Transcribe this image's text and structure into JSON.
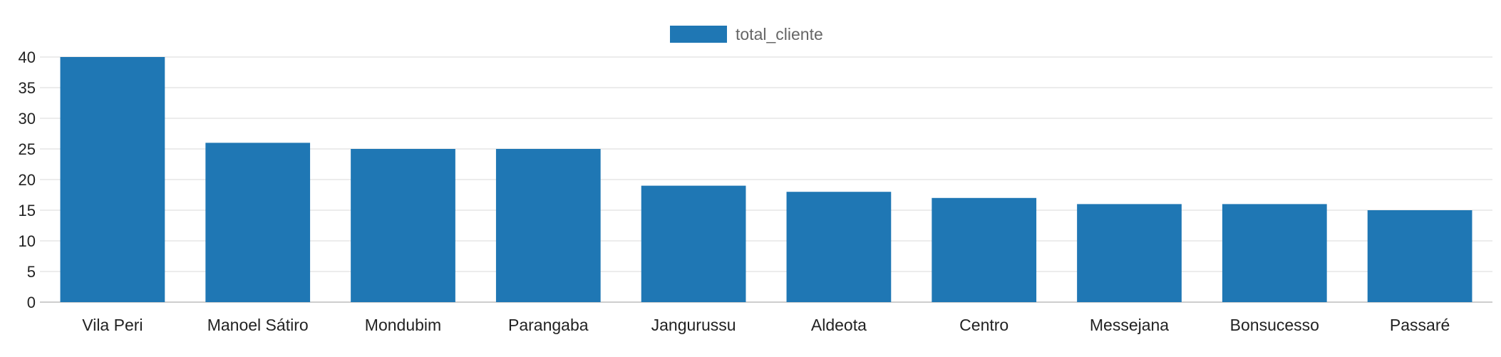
{
  "chart_data": {
    "type": "bar",
    "title": "",
    "xlabel": "",
    "ylabel": "",
    "categories": [
      "Vila Peri",
      "Manoel Sátiro",
      "Mondubim",
      "Parangaba",
      "Jangurussu",
      "Aldeota",
      "Centro",
      "Messejana",
      "Bonsucesso",
      "Passaré"
    ],
    "series": [
      {
        "name": "total_cliente",
        "values": [
          40,
          26,
          25,
          25,
          19,
          18,
          17,
          16,
          16,
          15
        ],
        "color": "#1f77b4"
      }
    ],
    "ylim": [
      0,
      40
    ],
    "yticks": [
      0,
      5,
      10,
      15,
      20,
      25,
      30,
      35,
      40
    ],
    "grid": true,
    "legend_position": "top-center",
    "colors": {
      "grid": "#d9d9d9",
      "axis": "#bdbdbd",
      "text": "#222222",
      "legend_text": "#666666"
    }
  }
}
